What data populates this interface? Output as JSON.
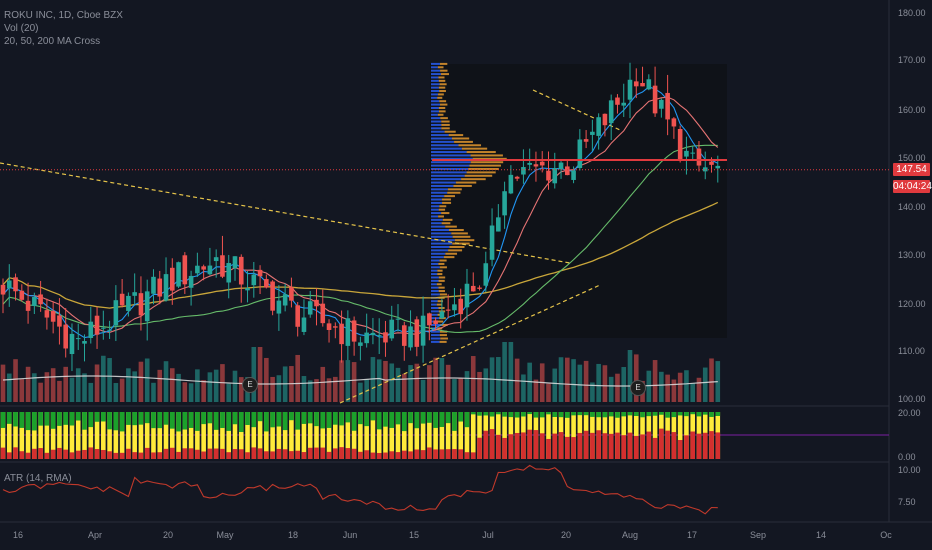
{
  "legend": {
    "symbol_line": "ROKU INC, 1D, Cboe BZX",
    "volume_line": "Vol (20)",
    "ma_line": "20, 50, 200 MA Cross",
    "atr_line": "ATR (14, RMA)"
  },
  "price_axis": {
    "ticks": [
      "180.00",
      "170.00",
      "160.00",
      "150.00",
      "140.00",
      "130.00",
      "120.00",
      "110.00",
      "100.00"
    ],
    "last_price": "147.54",
    "countdown": "04:04:24"
  },
  "osc_axis": {
    "ticks": [
      "20.00",
      "0.00"
    ]
  },
  "atr_axis": {
    "ticks": [
      "10.00",
      "7.50"
    ]
  },
  "time_axis": {
    "ticks": [
      "16",
      "Apr",
      "20",
      "May",
      "18",
      "Jun",
      "15",
      "Jul",
      "20",
      "Aug",
      "17",
      "Sep",
      "14",
      "Oc"
    ]
  },
  "earnings_marker": "E",
  "colors": {
    "background": "#131722",
    "up": "#26a69a",
    "down": "#ef5350",
    "ma20": "#2196f3",
    "ma50": "#e57373",
    "ma100": "#66bb6a",
    "ma200": "#c9a63a",
    "vol_ma": "#e0e0e0",
    "trendline": "#e6c44a",
    "profile_blue": "#2962ff",
    "profile_orange": "#f0a030",
    "osc_yellow": "#ffeb3b",
    "osc_green": "#1ba12b",
    "osc_red": "#d32f2f",
    "atr_line": "#c0392b",
    "last_price_line": "#e03a3e"
  },
  "chart_data": {
    "type": "candlestick",
    "title": "ROKU INC, 1D, Cboe BZX",
    "ylim": [
      98,
      183
    ],
    "last_price": 147.54,
    "anchors": [
      {
        "date": "Mar 16",
        "price": 124
      },
      {
        "date": "Apr 1",
        "price": 112
      },
      {
        "date": "Apr 20",
        "price": 125
      },
      {
        "date": "May 1",
        "price": 129
      },
      {
        "date": "May 18",
        "price": 118
      },
      {
        "date": "Jun 1",
        "price": 113
      },
      {
        "date": "Jun 15",
        "price": 114
      },
      {
        "date": "Jul 1",
        "price": 126
      },
      {
        "date": "Jul 6",
        "price": 146
      },
      {
        "date": "Jul 20",
        "price": 149
      },
      {
        "date": "Aug 1",
        "price": 163
      },
      {
        "date": "Aug 5",
        "price": 168
      },
      {
        "date": "Aug 17",
        "price": 148
      },
      {
        "date": "Aug 26",
        "price": 147.5
      }
    ],
    "atr_range": [
      6.5,
      10.5
    ]
  }
}
